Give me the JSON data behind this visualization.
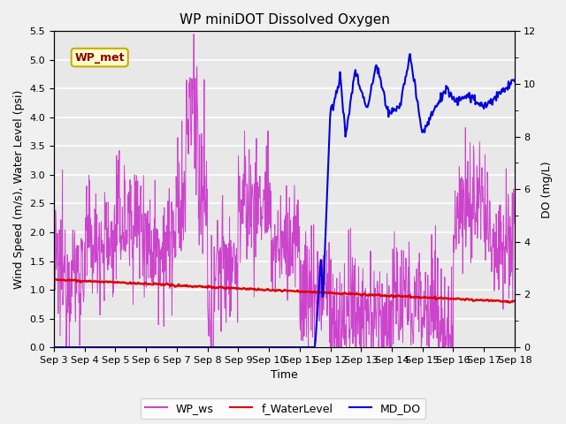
{
  "title": "WP miniDOT Dissolved Oxygen",
  "xlabel": "Time",
  "ylabel_left": "Wind Speed (m/s), Water Level (psi)",
  "ylabel_right": "DO (mg/L)",
  "wp_met_label": "WP_met",
  "legend_labels": [
    "WP_ws",
    "f_WaterLevel",
    "MD_DO"
  ],
  "ylim_left": [
    0,
    5.5
  ],
  "ylim_right": [
    0,
    12
  ],
  "yticks_left": [
    0.0,
    0.5,
    1.0,
    1.5,
    2.0,
    2.5,
    3.0,
    3.5,
    4.0,
    4.5,
    5.0,
    5.5
  ],
  "yticks_right": [
    0,
    2,
    4,
    6,
    8,
    10,
    12
  ],
  "xtick_labels": [
    "Sep 3",
    "Sep 4",
    "Sep 5",
    "Sep 6",
    "Sep 7",
    "Sep 8",
    "Sep 9",
    "Sep 10",
    "Sep 11",
    "Sep 12",
    "Sep 13",
    "Sep 14",
    "Sep 15",
    "Sep 16",
    "Sep 17",
    "Sep 18"
  ],
  "bg_color": "#f0f0f0",
  "plot_bg_color": "#e8e8e8",
  "grid_color": "#ffffff",
  "wp_ws_color": "#cc44cc",
  "water_level_color": "#dd0000",
  "md_do_color": "#0000dd",
  "wp_met_text_color": "#880000",
  "wp_met_box_face": "#ffffcc",
  "wp_met_box_edge": "#ccaa00"
}
